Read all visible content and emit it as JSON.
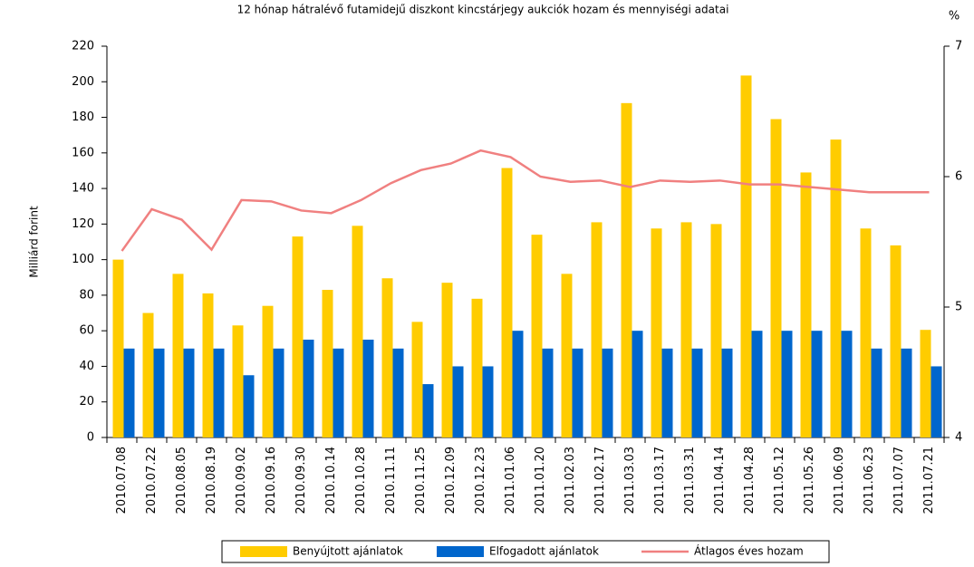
{
  "chart_data": {
    "type": "bar",
    "title": "12 hónap hátralévő futamidejű diszkont kincstárjegy aukciók hozam és mennyiségi adatai",
    "y_label": "Milliárd forint",
    "y2_label": "%",
    "categories": [
      "2010.07.08",
      "2010.07.22",
      "2010.08.05",
      "2010.08.19",
      "2010.09.02",
      "2010.09.16",
      "2010.09.30",
      "2010.10.14",
      "2010.10.28",
      "2010.11.11",
      "2010.11.25",
      "2010.12.09",
      "2010.12.23",
      "2011.01.06",
      "2011.01.20",
      "2011.02.03",
      "2011.02.17",
      "2011.03.03",
      "2011.03.17",
      "2011.03.31",
      "2011.04.14",
      "2011.04.28",
      "2011.05.12",
      "2011.05.26",
      "2011.06.09",
      "2011.06.23",
      "2011.07.07",
      "2011.07.21"
    ],
    "series": [
      {
        "name": "Benyújtott ajánlatok",
        "color": "#ffcc00",
        "type": "bar",
        "values": [
          100,
          70,
          92,
          81,
          63,
          74,
          113,
          83,
          119,
          89.5,
          65,
          87,
          78,
          151.5,
          114,
          92,
          121,
          188,
          117.5,
          121,
          120,
          203.5,
          179,
          149,
          167.5,
          117.5,
          108,
          60.5
        ]
      },
      {
        "name": "Elfogadott ajánlatok",
        "color": "#0066cc",
        "type": "bar",
        "values": [
          50,
          50,
          50,
          50,
          35,
          50,
          55,
          50,
          55,
          50,
          30,
          40,
          40,
          60,
          50,
          50,
          50,
          60,
          50,
          50,
          50,
          60,
          60,
          60,
          60,
          50,
          50,
          40
        ]
      },
      {
        "name": "Átlagos éves hozam",
        "color": "#f08080",
        "type": "line",
        "axis": "y2",
        "values": [
          5.43,
          5.75,
          5.67,
          5.44,
          5.82,
          5.81,
          5.74,
          5.72,
          5.82,
          5.95,
          6.05,
          6.1,
          6.2,
          6.15,
          6.0,
          5.96,
          5.97,
          5.92,
          5.97,
          5.96,
          5.97,
          5.94,
          5.94,
          5.92,
          5.9,
          5.88,
          5.88,
          5.88
        ]
      }
    ],
    "ylim": [
      0,
      220
    ],
    "yticks": [
      0,
      20,
      40,
      60,
      80,
      100,
      120,
      140,
      160,
      180,
      200,
      220
    ],
    "y2lim": [
      4,
      7
    ],
    "y2ticks": [
      4,
      5,
      6,
      7
    ],
    "legend": "bottom",
    "grid": false
  }
}
